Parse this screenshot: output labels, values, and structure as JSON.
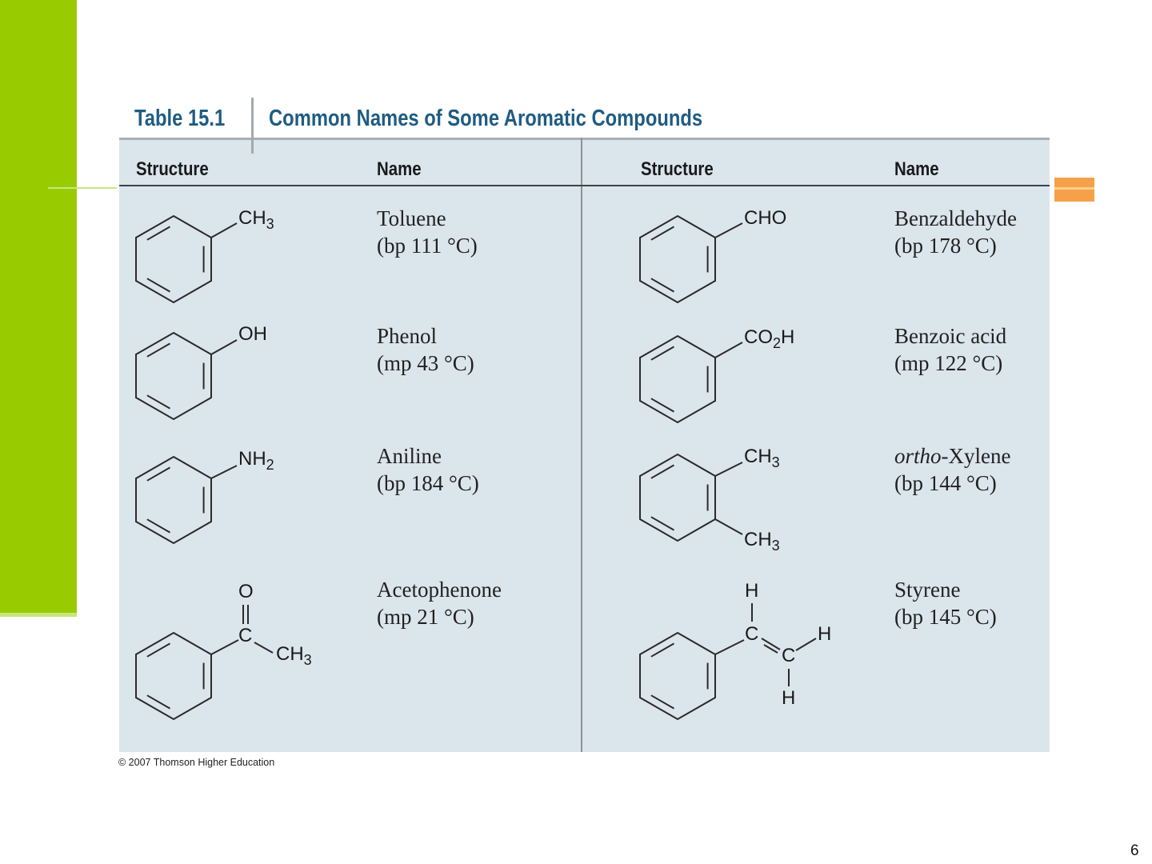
{
  "table": {
    "number": "Table 15.1",
    "title": "Common Names of Some Aromatic Compounds",
    "headers": [
      "Structure",
      "Name",
      "Structure",
      "Name"
    ],
    "left": [
      {
        "name": "Toluene",
        "property": "(bp 111 °C)",
        "substituents": [
          {
            "main": "CH",
            "sub": "3"
          }
        ]
      },
      {
        "name": "Phenol",
        "property": "(mp 43 °C)",
        "substituents": [
          {
            "main": "OH",
            "sub": ""
          }
        ]
      },
      {
        "name": "Aniline",
        "property": "(bp 184 °C)",
        "substituents": [
          {
            "main": "NH",
            "sub": "2"
          }
        ]
      },
      {
        "name": "Acetophenone",
        "property": "(mp 21 °C)",
        "substituents": [
          {
            "main": "O"
          },
          {
            "main": "C"
          },
          {
            "main": "CH",
            "sub": "3"
          }
        ]
      }
    ],
    "right": [
      {
        "name": "Benzaldehyde",
        "property": "(bp 178 °C)",
        "substituents": [
          {
            "main": "CHO",
            "sub": ""
          }
        ]
      },
      {
        "name": "Benzoic acid",
        "property": "(mp 122 °C)",
        "substituents": [
          {
            "main": "CO",
            "sub": "2",
            "tail": "H"
          }
        ]
      },
      {
        "name_italic": "ortho",
        "name": "-Xylene",
        "property": "(bp 144 °C)",
        "substituents": [
          {
            "main": "CH",
            "sub": "3"
          },
          {
            "main": "CH",
            "sub": "3"
          }
        ]
      },
      {
        "name": "Styrene",
        "property": "(bp 145 °C)",
        "substituents": [
          {
            "main": "H"
          },
          {
            "main": "C"
          },
          {
            "main": "C"
          },
          {
            "main": "H"
          },
          {
            "main": "H"
          }
        ]
      }
    ]
  },
  "copyright": "© 2007 Thomson Higher Education",
  "page_number": "6",
  "colors": {
    "accent_green": "#99cc00",
    "accent_orange": "#f5a14a",
    "title_blue": "#1f5c82",
    "table_bg": "#dbe5ec"
  }
}
